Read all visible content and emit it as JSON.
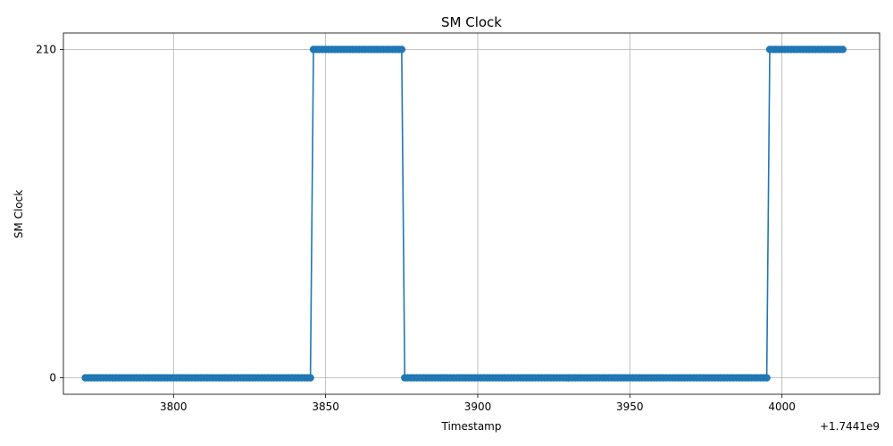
{
  "chart_data": {
    "type": "line",
    "title": "SM Clock",
    "xlabel": "Timestamp",
    "ylabel": "SM Clock",
    "x_offset_label": "+1.7441e9",
    "x_ticks": [
      3800,
      3850,
      3900,
      3950,
      4000
    ],
    "x_tick_labels": [
      "3800",
      "3850",
      "3900",
      "3950",
      "4000"
    ],
    "y_ticks": [
      0,
      210
    ],
    "y_tick_labels": [
      "0",
      "210"
    ],
    "xlim": [
      3763.8,
      4032.1
    ],
    "ylim": [
      -10.5,
      220.5
    ],
    "grid": true,
    "marker": "circle",
    "color": "#1f77b4",
    "series": [
      {
        "segments": [
          {
            "x_start": 3771,
            "x_end": 3845,
            "value": 0
          },
          {
            "x_start": 3846,
            "x_end": 3875,
            "value": 210
          },
          {
            "x_start": 3876,
            "x_end": 3995,
            "value": 0
          },
          {
            "x_start": 3996,
            "x_end": 4020,
            "value": 210
          }
        ]
      }
    ]
  }
}
